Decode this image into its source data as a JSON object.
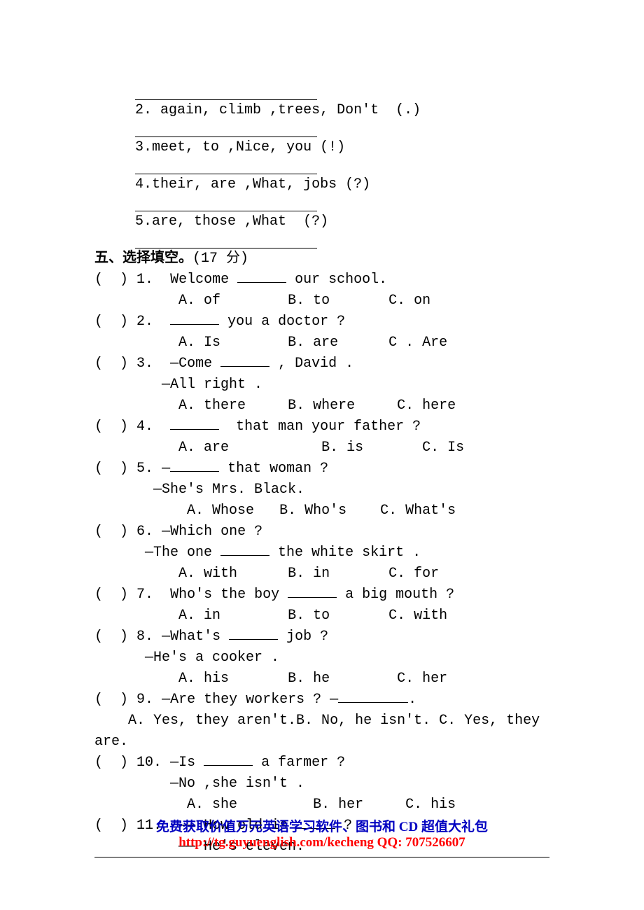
{
  "rearrange": {
    "items": [
      {
        "num": "2",
        "words": "again, climb ,trees, Don't",
        "end": "(.)"
      },
      {
        "num": "3",
        "words": "meet, to ,Nice, you",
        "end": "(!)"
      },
      {
        "num": "4",
        "words": "their, are ,What, jobs",
        "end": "(?)"
      },
      {
        "num": "5",
        "words": "are, those ,What",
        "end": "(?)"
      }
    ]
  },
  "section5": {
    "title": "五、选择填空。",
    "points": "(17 分)"
  },
  "mc": [
    {
      "n": "1",
      "q_pre": "Welcome ",
      "q_post": " our school.",
      "a": "A. of",
      "b": "B. to",
      "c": "C. on"
    },
    {
      "n": "2",
      "q_pre": "",
      "q_post": " you a doctor ?",
      "a": "A. Is",
      "b": "B. are",
      "c": "C . Are"
    },
    {
      "n": "3",
      "q_pre": "—Come ",
      "q_post": " , David .",
      "sub": "—All right .",
      "a": "A. there",
      "b": "B. where",
      "c": "C. here"
    },
    {
      "n": "4",
      "q_pre": "",
      "q_post": "  that man your father ?",
      "a": "A. are",
      "b": "B. is",
      "c": "C. Is"
    },
    {
      "n": "5",
      "q_pre": "—",
      "q_post": " that woman ?",
      "sub": "—She's Mrs. Black.",
      "a": "A. Whose",
      "b": "B. Who's",
      "c": "C. What's"
    },
    {
      "n": "6",
      "q_text": "—Which one ?",
      "sub_pre": "—The one ",
      "sub_post": " the white skirt .",
      "a": "A. with",
      "b": "B. in",
      "c": "C. for"
    },
    {
      "n": "7",
      "q_pre": "Who's the boy ",
      "q_post": " a big mouth ?",
      "a": "A. in",
      "b": "B. to",
      "c": "C. with"
    },
    {
      "n": "8",
      "q_pre": "—What's ",
      "q_post": " job ?",
      "sub": "—He's a cooker .",
      "a": "A. his",
      "b": "B. he",
      "c": "C. her"
    },
    {
      "n": "9",
      "q_pre": "—Are they workers ? —",
      "q_post": ".",
      "ans_line": "A. Yes, they aren't.B. No, he isn't. C. Yes, they",
      "ans_line2": "are."
    },
    {
      "n": "10",
      "q_pre": "—Is ",
      "q_post": " a farmer ?",
      "sub": "—No ,she isn't .",
      "a": "A. she",
      "b": "B. her",
      "c": "C. his"
    },
    {
      "n": "11",
      "q_pre": "—— How old is ",
      "q_post": " ?",
      "sub": "—— He's eleven."
    }
  ],
  "footer": {
    "line1": "免费获取价值万元英语学习软件、图书和 CD 超值大礼包",
    "line2": "http://tg.guyuenglish.com/kecheng    QQ: 707526607"
  }
}
